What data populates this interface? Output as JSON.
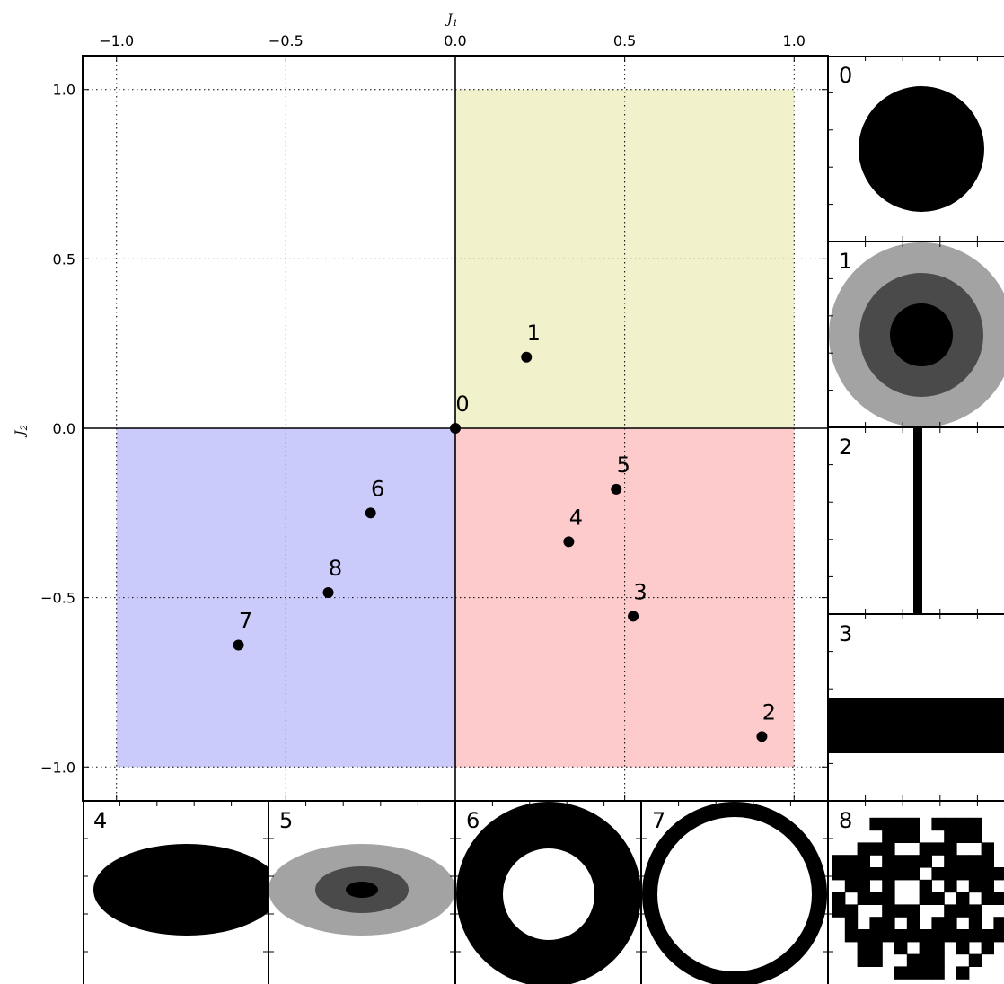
{
  "chart_data": {
    "type": "scatter",
    "xlabel": "J",
    "xlabel_sub": "1",
    "ylabel": "J",
    "ylabel_sub": "2",
    "xlim": [
      -1.1,
      1.1
    ],
    "ylim": [
      -1.1,
      1.1
    ],
    "x_ticks": [
      -1.0,
      -0.5,
      0.0,
      0.5,
      1.0
    ],
    "x_tick_labels": [
      "−1.0",
      "−0.5",
      "0.0",
      "0.5",
      "1.0"
    ],
    "y_ticks": [
      1.0,
      0.5,
      0.0,
      -0.5,
      -1.0
    ],
    "y_tick_labels": [
      "1.0",
      "0.5",
      "0.0",
      "−0.5",
      "−1.0"
    ],
    "x_axis_position": "top",
    "grid": true,
    "grid_style": "dotted",
    "regions": [
      {
        "x": [
          0,
          1
        ],
        "y": [
          0,
          1
        ],
        "color": "#f1f1cb"
      },
      {
        "x": [
          0,
          1
        ],
        "y": [
          -1,
          0
        ],
        "color": "#fdcbcb"
      },
      {
        "x": [
          -1,
          0
        ],
        "y": [
          -1,
          0
        ],
        "color": "#cbcbfb"
      }
    ],
    "points": [
      {
        "label": "0",
        "x": 0.0,
        "y": 0.0
      },
      {
        "label": "1",
        "x": 0.21,
        "y": 0.21
      },
      {
        "label": "2",
        "x": 0.905,
        "y": -0.91
      },
      {
        "label": "3",
        "x": 0.525,
        "y": -0.555
      },
      {
        "label": "4",
        "x": 0.335,
        "y": -0.335
      },
      {
        "label": "5",
        "x": 0.475,
        "y": -0.18
      },
      {
        "label": "6",
        "x": -0.25,
        "y": -0.25
      },
      {
        "label": "7",
        "x": -0.64,
        "y": -0.64
      },
      {
        "label": "8",
        "x": -0.375,
        "y": -0.485
      }
    ]
  },
  "thumbnails": [
    {
      "label": "0",
      "shape": "disk"
    },
    {
      "label": "1",
      "shape": "graded-disk"
    },
    {
      "label": "2",
      "shape": "vertical-bar"
    },
    {
      "label": "3",
      "shape": "horizontal-bar"
    },
    {
      "label": "4",
      "shape": "ellipse"
    },
    {
      "label": "5",
      "shape": "graded-ellipse"
    },
    {
      "label": "6",
      "shape": "thick-ring"
    },
    {
      "label": "7",
      "shape": "thin-ring"
    },
    {
      "label": "8",
      "shape": "random-pixel-disk"
    }
  ]
}
